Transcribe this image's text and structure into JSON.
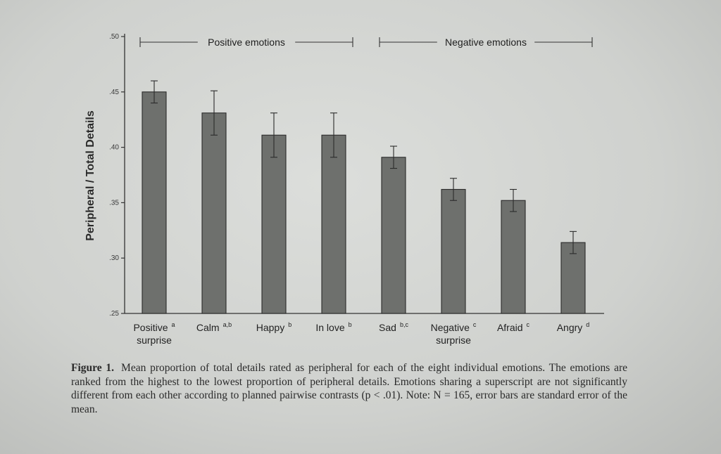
{
  "chart_data": {
    "type": "bar",
    "ylabel": "Peripheral / Total Details",
    "ylim": [
      0.25,
      0.5
    ],
    "yticks": [
      {
        "value": 0.25,
        "label": ".25"
      },
      {
        "value": 0.3,
        "label": ".30"
      },
      {
        "value": 0.35,
        "label": ".35"
      },
      {
        "value": 0.4,
        "label": ".40"
      },
      {
        "value": 0.45,
        "label": ".45"
      },
      {
        "value": 0.5,
        "label": ".50"
      }
    ],
    "categories": [
      {
        "label": [
          "Positive",
          "surprise"
        ],
        "superscript": "a"
      },
      {
        "label": [
          "Calm"
        ],
        "superscript": "a,b"
      },
      {
        "label": [
          "Happy"
        ],
        "superscript": "b"
      },
      {
        "label": [
          "In love"
        ],
        "superscript": "b"
      },
      {
        "label": [
          "Sad"
        ],
        "superscript": "b,c"
      },
      {
        "label": [
          "Negative",
          "surprise"
        ],
        "superscript": "c"
      },
      {
        "label": [
          "Afraid"
        ],
        "superscript": "c"
      },
      {
        "label": [
          "Angry"
        ],
        "superscript": "d"
      }
    ],
    "values": [
      0.45,
      0.431,
      0.411,
      0.411,
      0.391,
      0.362,
      0.352,
      0.314
    ],
    "errors": [
      0.01,
      0.02,
      0.02,
      0.02,
      0.01,
      0.01,
      0.01,
      0.01
    ],
    "groups": [
      {
        "label": "Positive emotions",
        "from": 0,
        "to": 3
      },
      {
        "label": "Negative emotions",
        "from": 4,
        "to": 7
      }
    ],
    "bar_color": "#6e706d"
  },
  "caption": {
    "label": "Figure 1.",
    "text": "Mean proportion of total details rated as peripheral for each of the eight individual emotions. The emotions are ranked from the highest to the lowest proportion of peripheral details. Emotions sharing a superscript are not significantly different from each other according to planned pairwise contrasts (p < .01). Note: N = 165, error bars are standard error of the mean."
  }
}
